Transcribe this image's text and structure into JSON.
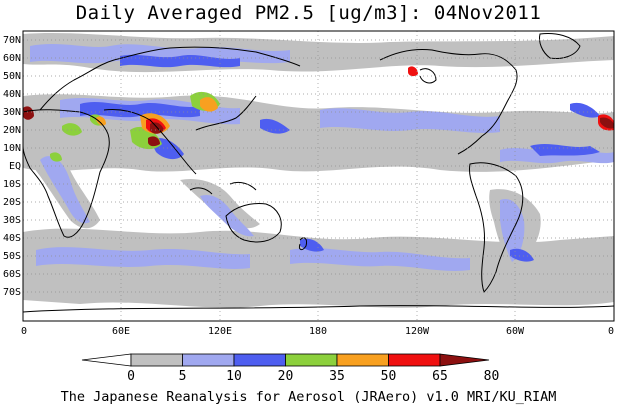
{
  "title": "Daily Averaged PM2.5 [ug/m3]: 04Nov2011",
  "map": {
    "lat_labels": [
      "70N",
      "60N",
      "50N",
      "40N",
      "30N",
      "20N",
      "10N",
      "EQ",
      "10S",
      "20S",
      "30S",
      "40S",
      "50S",
      "60S",
      "70S"
    ],
    "lon_labels": [
      "0",
      "60E",
      "120E",
      "180",
      "120W",
      "60W",
      "0"
    ]
  },
  "legend": {
    "labels": [
      "0",
      "5",
      "10",
      "20",
      "35",
      "50",
      "65",
      "80"
    ],
    "colors": [
      "#ffffff",
      "#c0c0c0",
      "#a0a8f0",
      "#4e5ef0",
      "#8cd03c",
      "#f8a020",
      "#f01010",
      "#8c1010"
    ]
  },
  "footer": "The Japanese Reanalysis for Aerosol (JRAero) v1.0 MRI/KU_RIAM"
}
